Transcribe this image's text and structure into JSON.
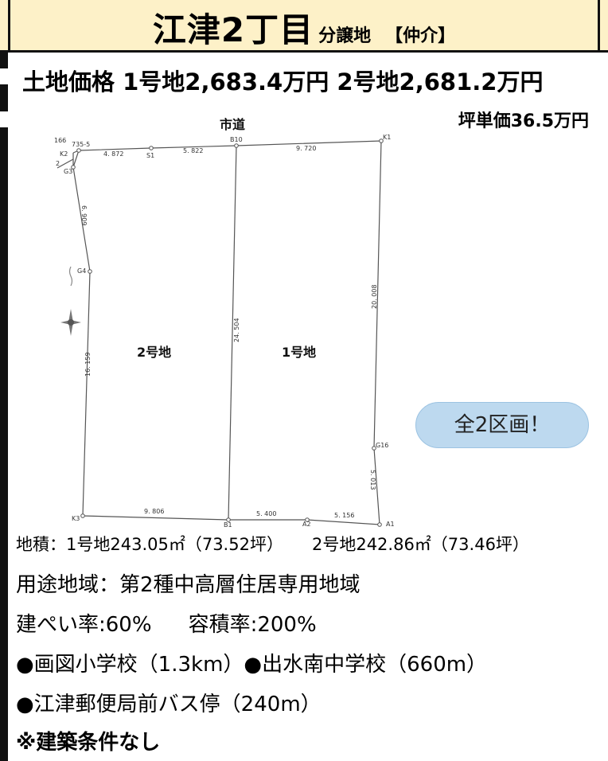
{
  "header": {
    "title": "江津2丁目",
    "subtitle": "分譲地",
    "tag": "【仲介】"
  },
  "price": {
    "label": "土地価格",
    "lot1": "1号地2,683.4万円",
    "lot2": "2号地2,681.2万円",
    "unit": "坪単価36.5万円"
  },
  "plan": {
    "road": "市道",
    "lot1_label": "1号地",
    "lot2_label": "2号地",
    "points": {
      "K1": "K1",
      "K2": "K2",
      "K3": "K3",
      "G3": "G3",
      "G4": "G4",
      "G16": "G16",
      "B10": "B10",
      "B1": "B1",
      "S1": "S1",
      "A1": "A1",
      "A2": "A2"
    },
    "dims": {
      "d735": "735-5",
      "d166": "166",
      "d2": "2",
      "top1": "4. 872",
      "top2": "5. 822",
      "top3": "9. 720",
      "left_upper": "6. 909",
      "left_lower": "16. 159",
      "center": "24. 504",
      "right_upper": "20. 008",
      "right_lower": "5. 013",
      "bottom1": "9. 806",
      "bottom2": "5. 400",
      "bottom3": "5. 156"
    },
    "badge": "全2区画！"
  },
  "area_line": {
    "lot1": "地積：1号地243.05㎡（73.52坪）",
    "lot2": "2号地242.86㎡（73.46坪）"
  },
  "info": {
    "zoning": "用途地域：第2種中高層住居専用地域",
    "coverage": "建ぺい率:60%",
    "far": "容積率:200%",
    "school1": "●画図小学校（1.3km）",
    "school2": "●出水南中学校（660m）",
    "bus": "●江津郵便局前バス停（240m）",
    "note": "※建築条件なし"
  }
}
